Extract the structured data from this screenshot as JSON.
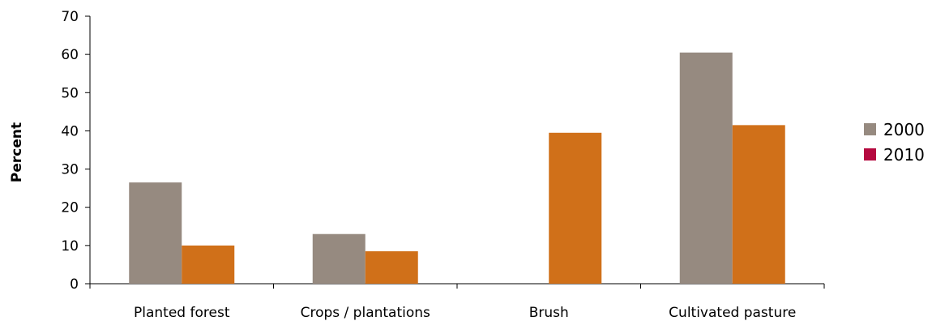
{
  "chart_data": {
    "type": "bar",
    "title": "",
    "xlabel": "",
    "ylabel": "Percent",
    "categories": [
      "Planted forest",
      "Crops / plantations",
      "Brush",
      "Cultivated pasture"
    ],
    "series": [
      {
        "name": "2000",
        "values": [
          26.5,
          13,
          0,
          60.5
        ],
        "color": "#968a80"
      },
      {
        "name": "2010",
        "values": [
          10,
          8.5,
          39.5,
          41.5
        ],
        "color": "#d07019"
      }
    ],
    "legend_swatch_colors": [
      "#968a80",
      "#b5093f"
    ],
    "ylim": [
      0,
      70
    ],
    "yticks": [
      0,
      10,
      20,
      30,
      40,
      50,
      60,
      70
    ],
    "grid": false,
    "legend_position": "right"
  }
}
